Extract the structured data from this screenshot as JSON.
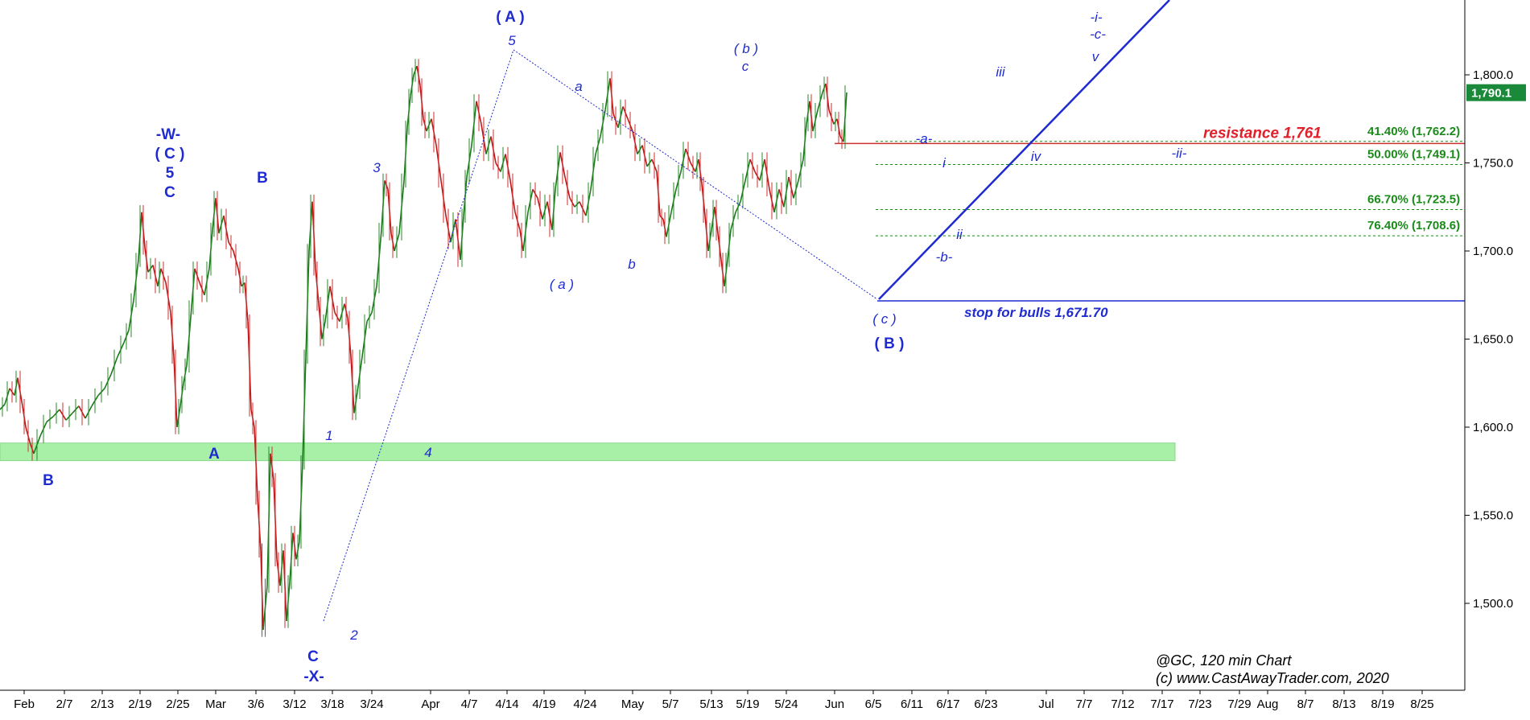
{
  "chart_data": {
    "type": "line",
    "instrument_label": "@GC, 120 min Chart",
    "copyright": "(c) www.CastAwayTrader.com, 2020",
    "colors": {
      "wave": "#1f2bd0",
      "fib": "#1a8a1a",
      "resistance": "#e0202a",
      "support_zone": "#a8f0a8",
      "candle_up": "#1a7a1a",
      "candle_down": "#c01818",
      "last_price_bg": "#1a8a3a"
    },
    "ylim": [
      1450,
      1830
    ],
    "y_ticks": [
      "1,500.0",
      "1,550.0",
      "1,600.0",
      "1,650.0",
      "1,700.0",
      "1,750.0",
      "1,800.0"
    ],
    "y_tick_values": [
      1500,
      1550,
      1600,
      1650,
      1700,
      1750,
      1800
    ],
    "x_ticks": [
      "Feb",
      "2/7",
      "2/13",
      "2/19",
      "2/25",
      "Mar",
      "3/6",
      "3/12",
      "3/18",
      "3/24",
      "Apr",
      "4/7",
      "4/14",
      "4/19",
      "4/24",
      "May",
      "5/7",
      "5/13",
      "5/19",
      "5/24",
      "Jun",
      "6/5",
      "6/11",
      "6/17",
      "6/23",
      "Jul",
      "7/7",
      "7/12",
      "7/17",
      "7/23",
      "7/29",
      "Aug",
      "8/7",
      "8/13",
      "8/19",
      "8/25"
    ],
    "last_price": "1,790.1",
    "last_price_value": 1790.1,
    "series": [
      {
        "values": [
          [
            0,
            1610
          ],
          [
            6,
            1613
          ],
          [
            12,
            1622
          ],
          [
            18,
            1618
          ],
          [
            22,
            1628
          ],
          [
            28,
            1612
          ],
          [
            32,
            1600
          ],
          [
            38,
            1590
          ],
          [
            42,
            1585
          ],
          [
            50,
            1595
          ],
          [
            58,
            1603
          ],
          [
            66,
            1606
          ],
          [
            74,
            1610
          ],
          [
            82,
            1604
          ],
          [
            90,
            1608
          ],
          [
            98,
            1612
          ],
          [
            106,
            1605
          ],
          [
            114,
            1612
          ],
          [
            122,
            1618
          ],
          [
            130,
            1622
          ],
          [
            138,
            1630
          ],
          [
            146,
            1640
          ],
          [
            154,
            1648
          ],
          [
            160,
            1655
          ],
          [
            166,
            1672
          ],
          [
            172,
            1695
          ],
          [
            176,
            1722
          ],
          [
            180,
            1702
          ],
          [
            184,
            1688
          ],
          [
            190,
            1692
          ],
          [
            196,
            1680
          ],
          [
            200,
            1690
          ],
          [
            206,
            1682
          ],
          [
            212,
            1665
          ],
          [
            216,
            1640
          ],
          [
            220,
            1600
          ],
          [
            224,
            1612
          ],
          [
            228,
            1625
          ],
          [
            232,
            1635
          ],
          [
            238,
            1668
          ],
          [
            242,
            1690
          ],
          [
            248,
            1682
          ],
          [
            254,
            1675
          ],
          [
            260,
            1690
          ],
          [
            264,
            1712
          ],
          [
            268,
            1730
          ],
          [
            272,
            1710
          ],
          [
            278,
            1720
          ],
          [
            284,
            1705
          ],
          [
            290,
            1700
          ],
          [
            296,
            1690
          ],
          [
            300,
            1680
          ],
          [
            304,
            1682
          ],
          [
            308,
            1660
          ],
          [
            312,
            1610
          ],
          [
            316,
            1600
          ],
          [
            320,
            1560
          ],
          [
            324,
            1530
          ],
          [
            327,
            1485
          ],
          [
            332,
            1510
          ],
          [
            336,
            1585
          ],
          [
            340,
            1570
          ],
          [
            344,
            1525
          ],
          [
            348,
            1510
          ],
          [
            352,
            1530
          ],
          [
            356,
            1490
          ],
          [
            360,
            1512
          ],
          [
            364,
            1540
          ],
          [
            368,
            1525
          ],
          [
            372,
            1535
          ],
          [
            376,
            1580
          ],
          [
            380,
            1640
          ],
          [
            384,
            1700
          ],
          [
            388,
            1728
          ],
          [
            392,
            1690
          ],
          [
            396,
            1670
          ],
          [
            400,
            1650
          ],
          [
            404,
            1660
          ],
          [
            410,
            1680
          ],
          [
            416,
            1665
          ],
          [
            422,
            1660
          ],
          [
            428,
            1670
          ],
          [
            432,
            1662
          ],
          [
            436,
            1640
          ],
          [
            440,
            1608
          ],
          [
            444,
            1620
          ],
          [
            450,
            1640
          ],
          [
            456,
            1660
          ],
          [
            462,
            1665
          ],
          [
            468,
            1680
          ],
          [
            474,
            1712
          ],
          [
            478,
            1740
          ],
          [
            482,
            1735
          ],
          [
            486,
            1710
          ],
          [
            490,
            1700
          ],
          [
            496,
            1710
          ],
          [
            502,
            1740
          ],
          [
            506,
            1770
          ],
          [
            510,
            1788
          ],
          [
            514,
            1800
          ],
          [
            518,
            1805
          ],
          [
            522,
            1794
          ],
          [
            526,
            1775
          ],
          [
            530,
            1768
          ],
          [
            536,
            1775
          ],
          [
            542,
            1760
          ],
          [
            548,
            1740
          ],
          [
            554,
            1720
          ],
          [
            560,
            1705
          ],
          [
            566,
            1718
          ],
          [
            572,
            1695
          ],
          [
            576,
            1720
          ],
          [
            580,
            1742
          ],
          [
            586,
            1760
          ],
          [
            592,
            1785
          ],
          [
            598,
            1772
          ],
          [
            604,
            1755
          ],
          [
            610,
            1765
          ],
          [
            616,
            1750
          ],
          [
            622,
            1745
          ],
          [
            628,
            1755
          ],
          [
            634,
            1740
          ],
          [
            640,
            1722
          ],
          [
            646,
            1712
          ],
          [
            650,
            1700
          ],
          [
            656,
            1722
          ],
          [
            662,
            1735
          ],
          [
            668,
            1730
          ],
          [
            674,
            1718
          ],
          [
            680,
            1728
          ],
          [
            686,
            1712
          ],
          [
            690,
            1735
          ],
          [
            696,
            1756
          ],
          [
            702,
            1742
          ],
          [
            708,
            1730
          ],
          [
            714,
            1725
          ],
          [
            720,
            1728
          ],
          [
            728,
            1720
          ],
          [
            734,
            1735
          ],
          [
            740,
            1755
          ],
          [
            746,
            1765
          ],
          [
            752,
            1780
          ],
          [
            758,
            1798
          ],
          [
            762,
            1778
          ],
          [
            768,
            1770
          ],
          [
            774,
            1782
          ],
          [
            780,
            1775
          ],
          [
            786,
            1768
          ],
          [
            792,
            1755
          ],
          [
            798,
            1760
          ],
          [
            804,
            1748
          ],
          [
            810,
            1752
          ],
          [
            816,
            1745
          ],
          [
            820,
            1720
          ],
          [
            824,
            1718
          ],
          [
            828,
            1708
          ],
          [
            834,
            1722
          ],
          [
            840,
            1735
          ],
          [
            846,
            1745
          ],
          [
            852,
            1758
          ],
          [
            858,
            1750
          ],
          [
            864,
            1745
          ],
          [
            868,
            1752
          ],
          [
            872,
            1738
          ],
          [
            876,
            1720
          ],
          [
            880,
            1700
          ],
          [
            884,
            1712
          ],
          [
            888,
            1725
          ],
          [
            892,
            1710
          ],
          [
            896,
            1695
          ],
          [
            900,
            1680
          ],
          [
            904,
            1695
          ],
          [
            908,
            1712
          ],
          [
            914,
            1722
          ],
          [
            920,
            1728
          ],
          [
            926,
            1740
          ],
          [
            932,
            1752
          ],
          [
            938,
            1745
          ],
          [
            944,
            1740
          ],
          [
            950,
            1752
          ],
          [
            956,
            1735
          ],
          [
            962,
            1722
          ],
          [
            968,
            1735
          ],
          [
            974,
            1725
          ],
          [
            980,
            1742
          ],
          [
            986,
            1730
          ],
          [
            992,
            1740
          ],
          [
            998,
            1752
          ],
          [
            1002,
            1772
          ],
          [
            1006,
            1785
          ],
          [
            1010,
            1768
          ],
          [
            1016,
            1780
          ],
          [
            1022,
            1790
          ],
          [
            1026,
            1795
          ],
          [
            1030,
            1780
          ],
          [
            1036,
            1772
          ],
          [
            1040,
            1775
          ],
          [
            1044,
            1765
          ],
          [
            1048,
            1762
          ],
          [
            1052,
            1790
          ]
        ]
      }
    ],
    "support_zone": [
      1581,
      1591
    ],
    "resistance": {
      "label": "resistance 1,761",
      "value": 1761
    },
    "stop_line": {
      "label": "stop for bulls 1,671.70",
      "value": 1671.7
    },
    "fib_levels": [
      {
        "label": "41.40% (1,762.2)",
        "value": 1762.2
      },
      {
        "label": "50.00% (1,749.1)",
        "value": 1749.1
      },
      {
        "label": "66.70% (1,723.5)",
        "value": 1723.5
      },
      {
        "label": "76.40% (1,708.6)",
        "value": 1708.6
      }
    ],
    "wave_labels": [
      {
        "text": "( A )",
        "kind": "big"
      },
      {
        "text": "5",
        "kind": "small"
      },
      {
        "text": "a",
        "kind": "small"
      },
      {
        "text": "( b )",
        "kind": "small"
      },
      {
        "text": "c",
        "kind": "small"
      },
      {
        "text": "-i-",
        "kind": "small"
      },
      {
        "text": "-c-",
        "kind": "small"
      },
      {
        "text": "v",
        "kind": "small"
      },
      {
        "text": "iii",
        "kind": "small"
      },
      {
        "text": "-a-",
        "kind": "small"
      },
      {
        "text": "i",
        "kind": "small"
      },
      {
        "text": "iv",
        "kind": "small"
      },
      {
        "text": "-ii-",
        "kind": "small"
      },
      {
        "text": "ii",
        "kind": "small"
      },
      {
        "text": "-b-",
        "kind": "small"
      },
      {
        "text": "( c )",
        "kind": "small"
      },
      {
        "text": "( B )",
        "kind": "big"
      },
      {
        "text": "-W-",
        "kind": "big"
      },
      {
        "text": "( C )",
        "kind": "big"
      },
      {
        "text": "5",
        "kind": "big"
      },
      {
        "text": "C",
        "kind": "big"
      },
      {
        "text": "B",
        "kind": "big"
      },
      {
        "text": "3",
        "kind": "small"
      },
      {
        "text": "( a )",
        "kind": "small"
      },
      {
        "text": "b",
        "kind": "small"
      },
      {
        "text": "1",
        "kind": "small"
      },
      {
        "text": "A",
        "kind": "big"
      },
      {
        "text": "4",
        "kind": "small"
      },
      {
        "text": "B",
        "kind": "big"
      },
      {
        "text": "2",
        "kind": "small"
      },
      {
        "text": "C",
        "kind": "big"
      },
      {
        "text": "-X-",
        "kind": "big"
      }
    ]
  }
}
